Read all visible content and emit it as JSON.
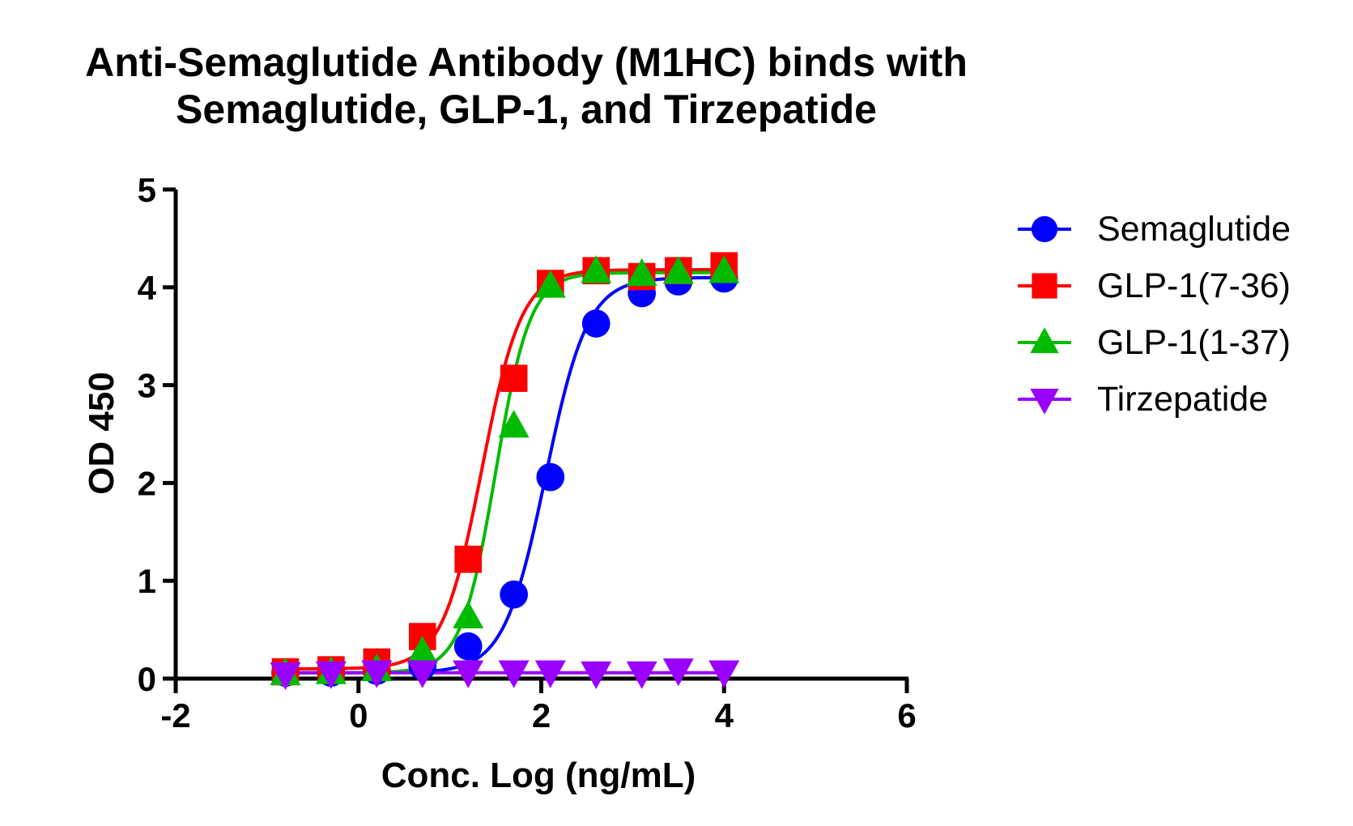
{
  "title": {
    "line1": "Anti-Semaglutide Antibody (M1HC) binds with",
    "line2": "Semaglutide, GLP-1, and Tirzepatide"
  },
  "chart_data": {
    "type": "line",
    "title": "Anti-Semaglutide Antibody (M1HC) binds with Semaglutide, GLP-1, and Tirzepatide",
    "xlabel": "Conc. Log (ng/mL)",
    "ylabel": "OD 450",
    "xlim": [
      -2,
      6
    ],
    "ylim": [
      0,
      5
    ],
    "xticks": [
      -2,
      0,
      2,
      4,
      6
    ],
    "yticks": [
      0,
      1,
      2,
      3,
      4,
      5
    ],
    "grid": false,
    "legend_position": "right",
    "x": [
      -0.8,
      -0.3,
      0.2,
      0.7,
      1.2,
      1.7,
      2.1,
      2.6,
      3.1,
      3.5,
      4.0
    ],
    "series": [
      {
        "name": "Semaglutide",
        "marker": "circle",
        "color": "#0000ff",
        "values": [
          0.06,
          0.06,
          0.08,
          0.13,
          0.33,
          0.86,
          2.06,
          3.63,
          3.94,
          4.06,
          4.09
        ],
        "fit": {
          "bottom": 0.06,
          "top": 4.1,
          "logEC50": 2.05,
          "hill": 1.9
        }
      },
      {
        "name": "GLP-1(7-36)",
        "marker": "square",
        "color": "#ff0000",
        "values": [
          0.07,
          0.09,
          0.17,
          0.43,
          1.22,
          3.07,
          4.04,
          4.17,
          4.11,
          4.17,
          4.22
        ],
        "fit": {
          "bottom": 0.1,
          "top": 4.18,
          "logEC50": 1.35,
          "hill": 2.0
        }
      },
      {
        "name": "GLP-1(1-37)",
        "marker": "triangle-up",
        "color": "#00bb00",
        "values": [
          0.05,
          0.06,
          0.09,
          0.27,
          0.63,
          2.58,
          4.01,
          4.16,
          4.13,
          4.15,
          4.16
        ],
        "fit": {
          "bottom": 0.06,
          "top": 4.15,
          "logEC50": 1.5,
          "hill": 2.3
        }
      },
      {
        "name": "Tirzepatide",
        "marker": "triangle-down",
        "color": "#9900ff",
        "values": [
          0.05,
          0.06,
          0.07,
          0.07,
          0.07,
          0.07,
          0.07,
          0.06,
          0.06,
          0.09,
          0.07
        ],
        "fit": {
          "bottom": 0.06,
          "top": 0.06,
          "logEC50": 1.0,
          "hill": 1.0
        }
      }
    ]
  }
}
